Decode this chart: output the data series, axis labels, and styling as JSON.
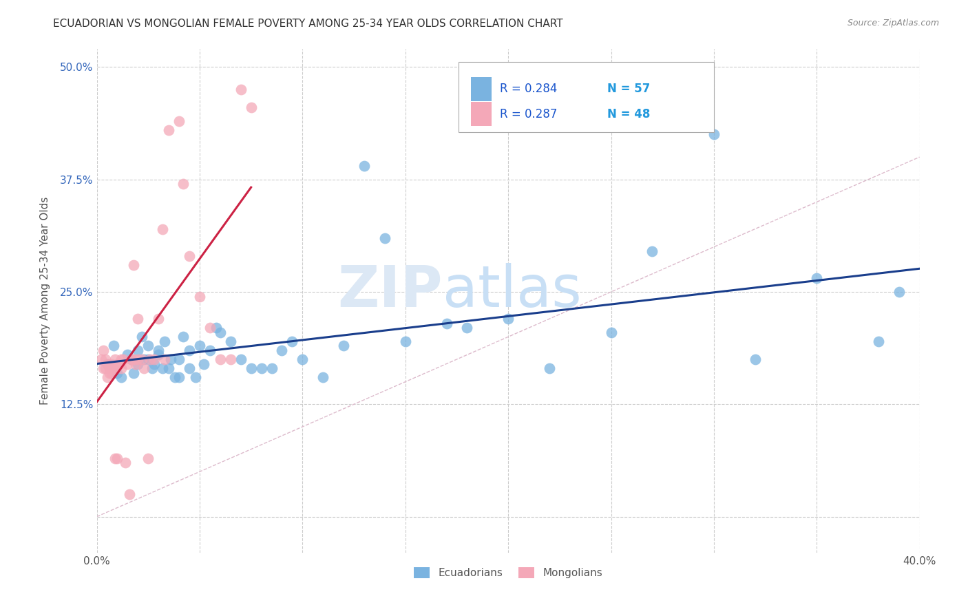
{
  "title": "ECUADORIAN VS MONGOLIAN FEMALE POVERTY AMONG 25-34 YEAR OLDS CORRELATION CHART",
  "source": "Source: ZipAtlas.com",
  "ylabel": "Female Poverty Among 25-34 Year Olds",
  "xmin": 0.0,
  "xmax": 0.4,
  "ymin": -0.04,
  "ymax": 0.52,
  "x_ticks": [
    0.0,
    0.05,
    0.1,
    0.15,
    0.2,
    0.25,
    0.3,
    0.35,
    0.4
  ],
  "x_tick_labels": [
    "0.0%",
    "",
    "",
    "",
    "",
    "",
    "",
    "",
    "40.0%"
  ],
  "y_ticks": [
    0.0,
    0.125,
    0.25,
    0.375,
    0.5
  ],
  "y_tick_labels": [
    "",
    "12.5%",
    "25.0%",
    "37.5%",
    "50.0%"
  ],
  "grid_color": "#cccccc",
  "background_color": "#ffffff",
  "ecuadorians_color": "#7ab3e0",
  "mongolians_color": "#f4a8b8",
  "trendline_ecuador_color": "#1a3e8c",
  "trendline_mongolia_color": "#cc2244",
  "diagonal_color": "#ddbbcc",
  "watermark_color": "#dce8f5",
  "legend_R_ecuador": "0.284",
  "legend_N_ecuador": "57",
  "legend_R_mongolia": "0.287",
  "legend_N_mongolia": "48",
  "ecuador_x": [
    0.005,
    0.008,
    0.01,
    0.012,
    0.015,
    0.017,
    0.018,
    0.02,
    0.02,
    0.022,
    0.023,
    0.025,
    0.025,
    0.027,
    0.028,
    0.03,
    0.03,
    0.032,
    0.033,
    0.035,
    0.036,
    0.038,
    0.04,
    0.04,
    0.042,
    0.045,
    0.045,
    0.048,
    0.05,
    0.052,
    0.055,
    0.058,
    0.06,
    0.065,
    0.07,
    0.075,
    0.08,
    0.085,
    0.09,
    0.095,
    0.1,
    0.11,
    0.12,
    0.13,
    0.14,
    0.15,
    0.17,
    0.18,
    0.2,
    0.22,
    0.25,
    0.27,
    0.3,
    0.32,
    0.35,
    0.38,
    0.39
  ],
  "ecuador_y": [
    0.17,
    0.19,
    0.16,
    0.155,
    0.18,
    0.175,
    0.16,
    0.185,
    0.17,
    0.2,
    0.175,
    0.19,
    0.175,
    0.165,
    0.17,
    0.185,
    0.18,
    0.165,
    0.195,
    0.165,
    0.175,
    0.155,
    0.155,
    0.175,
    0.2,
    0.185,
    0.165,
    0.155,
    0.19,
    0.17,
    0.185,
    0.21,
    0.205,
    0.195,
    0.175,
    0.165,
    0.165,
    0.165,
    0.185,
    0.195,
    0.175,
    0.155,
    0.19,
    0.39,
    0.31,
    0.195,
    0.215,
    0.21,
    0.22,
    0.165,
    0.205,
    0.295,
    0.425,
    0.175,
    0.265,
    0.195,
    0.25
  ],
  "mongolia_x": [
    0.002,
    0.003,
    0.003,
    0.004,
    0.004,
    0.005,
    0.005,
    0.006,
    0.006,
    0.007,
    0.007,
    0.008,
    0.008,
    0.009,
    0.009,
    0.01,
    0.01,
    0.011,
    0.012,
    0.012,
    0.013,
    0.014,
    0.015,
    0.016,
    0.017,
    0.018,
    0.018,
    0.019,
    0.02,
    0.02,
    0.022,
    0.023,
    0.025,
    0.026,
    0.028,
    0.03,
    0.032,
    0.033,
    0.035,
    0.04,
    0.042,
    0.045,
    0.05,
    0.055,
    0.06,
    0.065,
    0.07,
    0.075
  ],
  "mongolia_y": [
    0.175,
    0.185,
    0.165,
    0.175,
    0.165,
    0.17,
    0.155,
    0.16,
    0.165,
    0.16,
    0.17,
    0.165,
    0.165,
    0.065,
    0.175,
    0.17,
    0.065,
    0.17,
    0.175,
    0.165,
    0.175,
    0.06,
    0.17,
    0.025,
    0.175,
    0.28,
    0.175,
    0.17,
    0.175,
    0.22,
    0.175,
    0.165,
    0.065,
    0.175,
    0.175,
    0.22,
    0.32,
    0.175,
    0.43,
    0.44,
    0.37,
    0.29,
    0.245,
    0.21,
    0.175,
    0.175,
    0.475,
    0.455
  ]
}
